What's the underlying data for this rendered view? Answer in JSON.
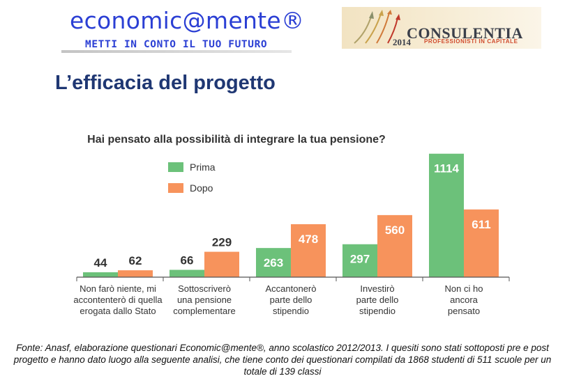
{
  "header": {
    "brand_title": "economic@mente®",
    "brand_subtitle": "METTI IN CONTO IL TUO FUTURO",
    "logo": {
      "name": "CONSULENTIA",
      "year": "2014",
      "tagline": "PROFESSIONISTI IN CAPITALE"
    }
  },
  "page_title": "L’efficacia del progetto",
  "chart_data": {
    "type": "bar",
    "title": "Hai pensato alla possibilità di integrare la tua pensione?",
    "xlabel": "",
    "ylabel": "",
    "ylim": [
      0,
      1150
    ],
    "grid": false,
    "legend_position": "top-left",
    "categories": [
      [
        "Non farò niente, mi",
        "accontenterò di quella",
        "erogata dallo Stato"
      ],
      [
        "Sottoscriverò",
        "una pensione",
        "complementare"
      ],
      [
        "Accantonerò",
        "parte dello",
        "stipendio"
      ],
      [
        "Investirò",
        "parte dello",
        "stipendio"
      ],
      [
        "Non ci ho",
        "ancora",
        "pensato"
      ]
    ],
    "series": [
      {
        "name": "Prima",
        "color": "#6cc17a",
        "values": [
          44,
          66,
          263,
          297,
          1114
        ]
      },
      {
        "name": "Dopo",
        "color": "#f7935c",
        "values": [
          62,
          229,
          478,
          560,
          611
        ]
      }
    ],
    "label_colors": {
      "inside": "#ffffff",
      "outside": "#333333"
    }
  },
  "footer": {
    "source": "Fonte: Anasf, elaborazione questionari Economic@mente®, anno scolastico 2012/2013. I quesiti sono stati sottoposti pre e post progetto e hanno dato luogo alla seguente analisi, che tiene conto dei questionari compilati da 1868 studenti di 511 scuole per un totale di 139 classi"
  }
}
